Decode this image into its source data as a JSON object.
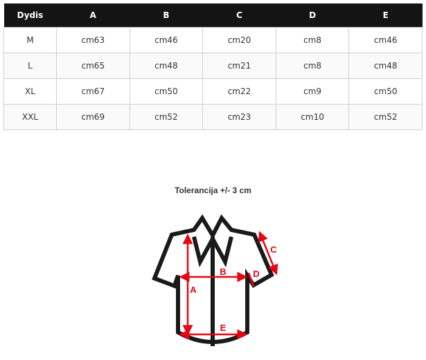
{
  "table": {
    "headers": [
      "Dydis",
      "A",
      "B",
      "C",
      "D",
      "E"
    ],
    "rows": [
      [
        "M",
        "cm63",
        "cm46",
        "cm20",
        "cm8",
        "cm46"
      ],
      [
        "L",
        "cm65",
        "cm48",
        "cm21",
        "cm8",
        "cm48"
      ],
      [
        "XL",
        "cm67",
        "cm50",
        "cm22",
        "cm9",
        "cm50"
      ],
      [
        "XXL",
        "cm69",
        "cm52",
        "cm23",
        "cm10",
        "cm52"
      ]
    ]
  },
  "diagram": {
    "title": "Tolerancija +/- 3 cm",
    "labels": {
      "a": "A",
      "b": "B",
      "c": "C",
      "d": "D",
      "e": "E"
    },
    "outline_color": "#1a1a1a",
    "measure_color": "#e30613"
  }
}
